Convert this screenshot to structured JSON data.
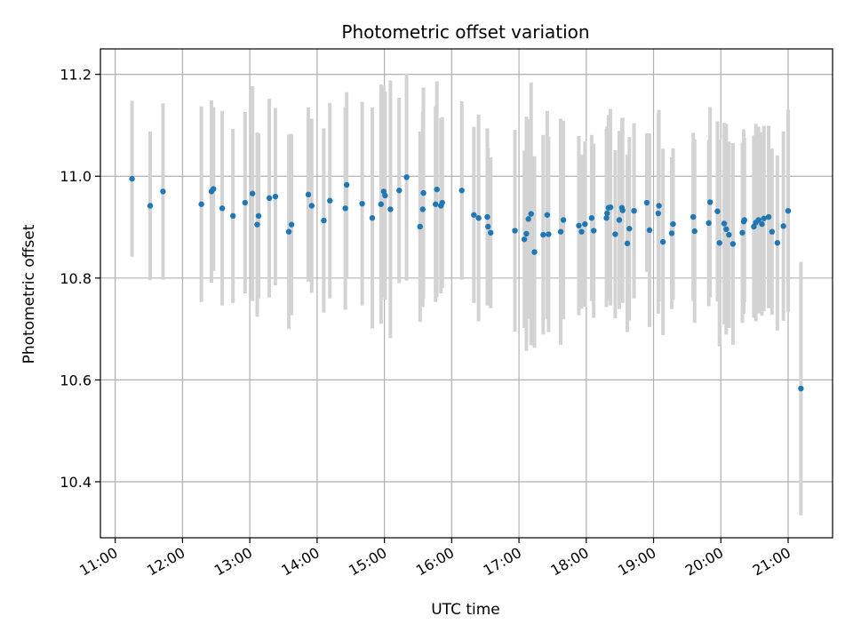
{
  "chart_data": {
    "type": "scatter",
    "title": "Photometric offset variation",
    "xlabel": "UTC time",
    "ylabel": "Photometric offset",
    "grid": true,
    "xlim_hours": [
      10.78,
      21.66
    ],
    "ylim": [
      10.29,
      11.25
    ],
    "x_ticks": [
      11,
      12,
      13,
      14,
      15,
      16,
      17,
      18,
      19,
      20,
      21
    ],
    "x_tick_labels": [
      "11:00",
      "12:00",
      "13:00",
      "14:00",
      "15:00",
      "16:00",
      "17:00",
      "18:00",
      "19:00",
      "20:00",
      "21:00"
    ],
    "y_ticks": [
      10.4,
      10.6,
      10.8,
      11.0,
      11.2
    ],
    "y_tick_labels": [
      "10.4",
      "10.6",
      "10.8",
      "11.0",
      "11.2"
    ],
    "colors": {
      "point": "#1f77b4",
      "errorbar": "#d3d3d3",
      "grid": "#b0b0b0"
    },
    "series": [
      {
        "name": "Photometric offset",
        "x_hours": [
          11.25,
          11.52,
          11.71,
          12.28,
          12.43,
          12.46,
          12.59,
          12.75,
          12.93,
          13.04,
          13.11,
          13.13,
          13.29,
          13.38,
          13.58,
          13.62,
          13.87,
          13.92,
          14.1,
          14.19,
          14.42,
          14.44,
          14.67,
          14.82,
          14.95,
          14.99,
          15.01,
          15.09,
          15.22,
          15.33,
          15.53,
          15.57,
          15.58,
          15.76,
          15.78,
          15.84,
          15.86,
          16.15,
          16.33,
          16.4,
          16.53,
          16.54,
          16.58,
          16.94,
          17.08,
          17.11,
          17.14,
          17.18,
          17.23,
          17.36,
          17.42,
          17.44,
          17.62,
          17.66,
          17.89,
          17.93,
          17.98,
          18.08,
          18.11,
          18.3,
          18.31,
          18.33,
          18.36,
          18.43,
          18.49,
          18.53,
          18.54,
          18.61,
          18.64,
          18.71,
          18.9,
          18.94,
          19.07,
          19.08,
          19.14,
          19.27,
          19.29,
          19.59,
          19.61,
          19.82,
          19.84,
          19.95,
          19.98,
          20.05,
          20.08,
          20.12,
          20.18,
          20.32,
          20.34,
          20.35,
          20.49,
          20.52,
          20.56,
          20.61,
          20.64,
          20.71,
          20.76,
          20.84,
          20.93,
          21.0,
          21.19
        ],
        "y": [
          10.995,
          10.942,
          10.97,
          10.945,
          10.97,
          10.975,
          10.937,
          10.922,
          10.948,
          10.966,
          10.905,
          10.922,
          10.957,
          10.96,
          10.891,
          10.905,
          10.964,
          10.942,
          10.913,
          10.952,
          10.937,
          10.983,
          10.946,
          10.918,
          10.945,
          10.97,
          10.962,
          10.935,
          10.972,
          10.998,
          10.901,
          10.935,
          10.967,
          10.945,
          10.974,
          10.942,
          10.948,
          10.972,
          10.924,
          10.918,
          10.92,
          10.901,
          10.889,
          10.893,
          10.876,
          10.887,
          10.916,
          10.926,
          10.851,
          10.885,
          10.924,
          10.886,
          10.891,
          10.914,
          10.903,
          10.891,
          10.906,
          10.918,
          10.893,
          10.918,
          10.927,
          10.938,
          10.939,
          10.886,
          10.914,
          10.938,
          10.933,
          10.868,
          10.897,
          10.932,
          10.948,
          10.894,
          10.927,
          10.942,
          10.871,
          10.888,
          10.906,
          10.92,
          10.892,
          10.908,
          10.949,
          10.931,
          10.869,
          10.907,
          10.896,
          10.885,
          10.867,
          10.889,
          10.911,
          10.914,
          10.901,
          10.909,
          10.914,
          10.906,
          10.917,
          10.92,
          10.891,
          10.869,
          10.902,
          10.932,
          10.583
        ],
        "err": [
          0.153,
          0.146,
          0.173,
          0.192,
          0.179,
          0.161,
          0.191,
          0.171,
          0.178,
          0.211,
          0.181,
          0.162,
          0.195,
          0.174,
          0.191,
          0.178,
          0.171,
          0.171,
          0.181,
          0.192,
          0.199,
          0.182,
          0.2,
          0.217,
          0.235,
          0.208,
          0.204,
          0.253,
          0.182,
          0.203,
          0.187,
          0.192,
          0.207,
          0.192,
          0.212,
          0.172,
          0.168,
          0.175,
          0.173,
          0.203,
          0.174,
          0.154,
          0.148,
          0.198,
          0.174,
          0.23,
          0.196,
          0.258,
          0.188,
          0.196,
          0.204,
          0.192,
          0.222,
          0.195,
          0.176,
          0.151,
          0.162,
          0.163,
          0.171,
          0.175,
          0.171,
          0.182,
          0.193,
          0.165,
          0.175,
          0.176,
          0.182,
          0.174,
          0.18,
          0.172,
          0.136,
          0.19,
          0.197,
          0.188,
          0.183,
          0.149,
          0.149,
          0.165,
          0.18,
          0.163,
          0.187,
          0.177,
          0.203,
          0.198,
          0.207,
          0.183,
          0.198,
          0.177,
          0.181,
          0.161,
          0.179,
          0.194,
          0.183,
          0.18,
          0.182,
          0.179,
          0.163,
          0.172,
          0.186,
          0.199,
          0.249
        ]
      }
    ]
  }
}
